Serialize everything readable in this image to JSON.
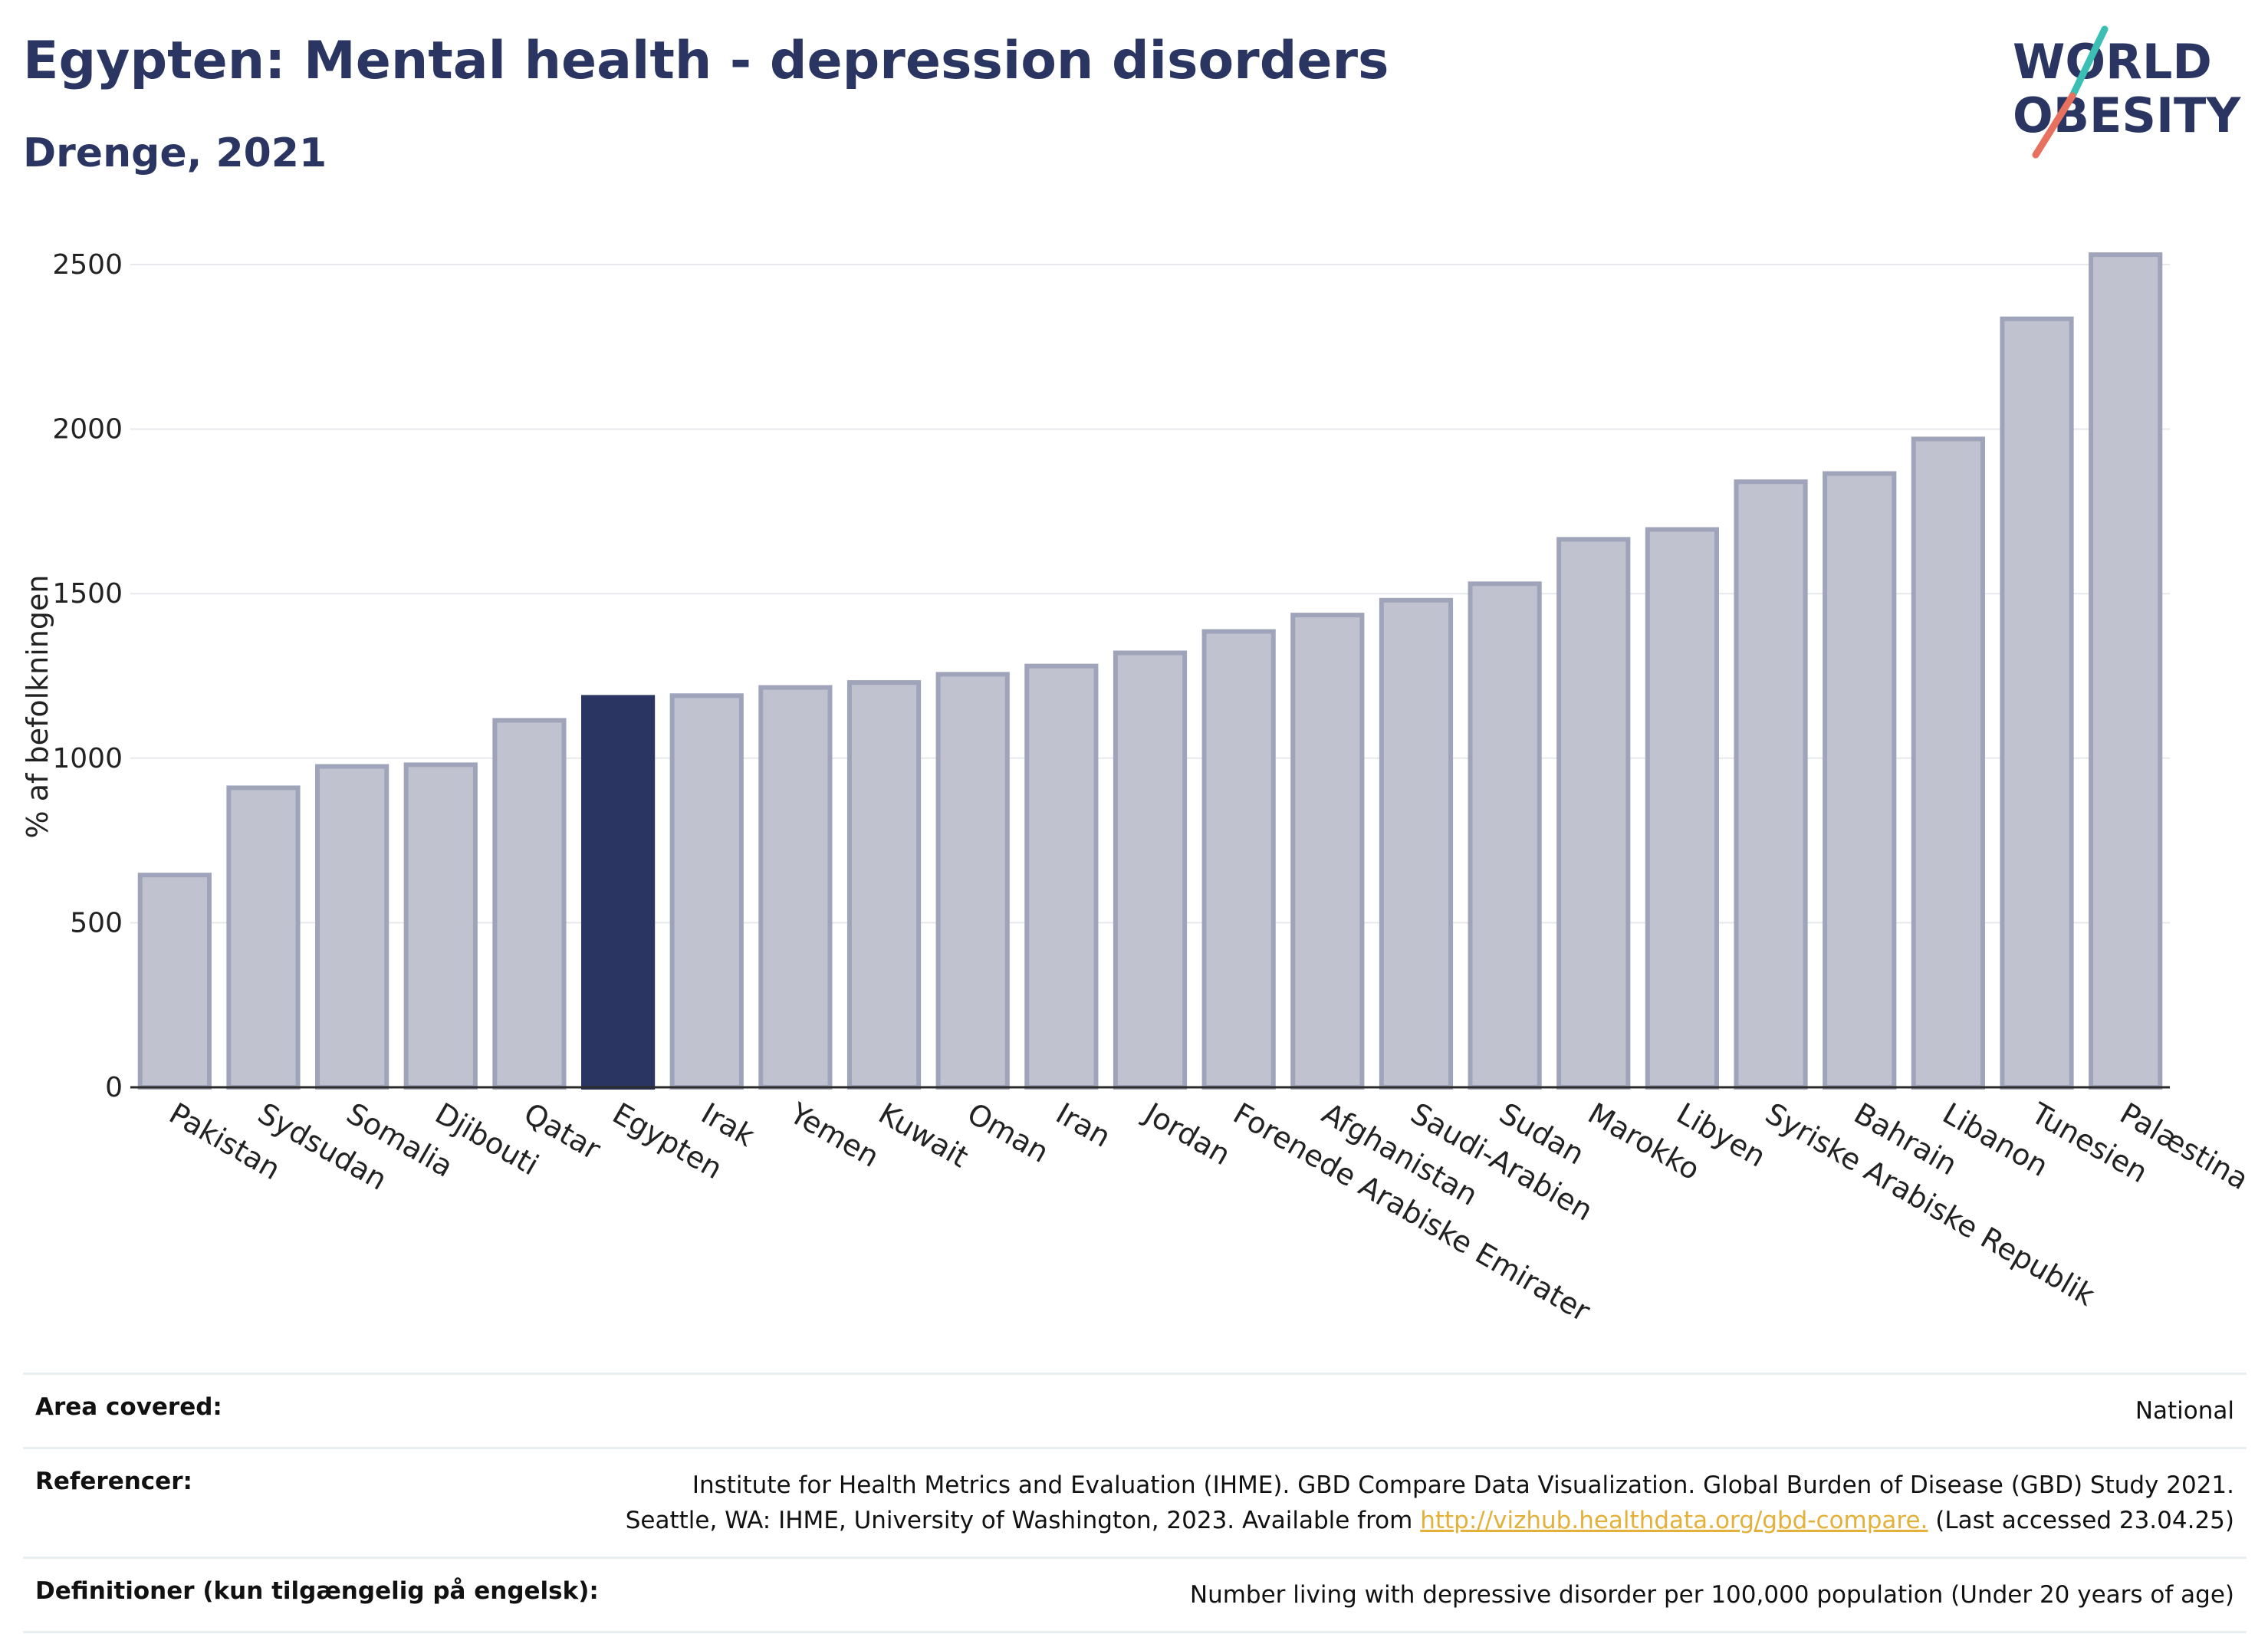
{
  "header": {
    "title": "Egypten: Mental health - depression disorders",
    "subtitle": "Drenge, 2021"
  },
  "logo": {
    "line1": "WORLD",
    "line2": "OBESITY",
    "colors": {
      "text": "#2a3561",
      "slash_teal": "#3bbfb5",
      "slash_coral": "#e8705f"
    }
  },
  "chart_data": {
    "type": "bar",
    "categories": [
      "Pakistan",
      "Sydsudan",
      "Somalia",
      "Djibouti",
      "Qatar",
      "Egypten",
      "Irak",
      "Yemen",
      "Kuwait",
      "Oman",
      "Iran",
      "Jordan",
      "Forenede Arabiske Emirater",
      "Afghanistan",
      "Saudi-Arabien",
      "Sudan",
      "Marokko",
      "Libyen",
      "Syriske Arabiske Republik",
      "Bahrain",
      "Libanon",
      "Tunesien",
      "Palæstina"
    ],
    "values": [
      645,
      910,
      975,
      980,
      1115,
      1185,
      1190,
      1215,
      1230,
      1255,
      1280,
      1320,
      1385,
      1435,
      1480,
      1530,
      1665,
      1695,
      1840,
      1865,
      1970,
      2335,
      2530
    ],
    "highlight": "Egypten",
    "ylabel": "% af befolkningen",
    "ylim": [
      0,
      2600
    ],
    "yticks": [
      0,
      500,
      1000,
      1500,
      2000,
      2500
    ],
    "grid": true,
    "colors": {
      "bar": "#c0c3cf",
      "bar_border": "#a0a4ba",
      "highlight": "#2a3561"
    }
  },
  "info": {
    "area_label": "Area covered:",
    "area_value": "National",
    "ref_label": "Referencer:",
    "ref_line1": "Institute for Health Metrics and Evaluation (IHME). GBD Compare Data Visualization. Global Burden of Disease (GBD) Study 2021.",
    "ref_line2_pre": "Seattle, WA: IHME, University of Washington, 2023. Available from ",
    "ref_link": "http://vizhub.healthdata.org/gbd-compare.",
    "ref_line2_post": " (Last accessed 23.04.25)",
    "def_label": "Definitioner (kun tilgængelig på engelsk):",
    "def_value": "Number living with depressive disorder per 100,000 population (Under 20 years of age)"
  }
}
